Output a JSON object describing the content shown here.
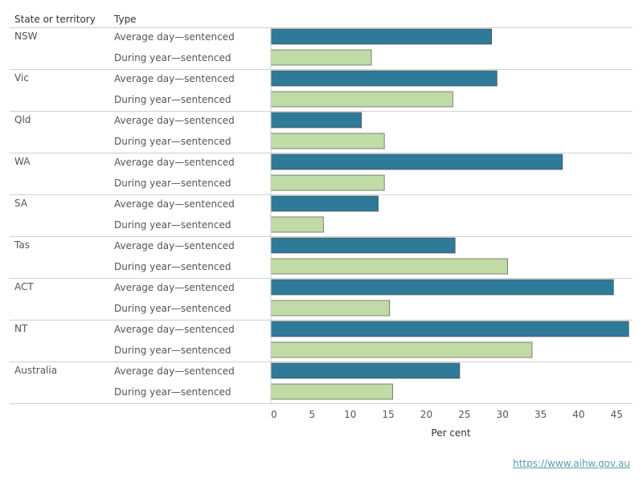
{
  "header": {
    "state_label": "State or territory",
    "type_label": "Type"
  },
  "source_link": "https://www.aihw.gov.au",
  "colors": {
    "average_day": "#2e7a98",
    "during_year": "#c0dba6"
  },
  "chart_data": {
    "type": "bar",
    "orientation": "horizontal",
    "xlabel": "Per cent",
    "xlim": [
      0,
      47.5
    ],
    "xticks": [
      0,
      5,
      10,
      15,
      20,
      25,
      30,
      35,
      40,
      45
    ],
    "categories": [
      "NSW",
      "Vic",
      "Qld",
      "WA",
      "SA",
      "Tas",
      "ACT",
      "NT",
      "Australia"
    ],
    "series": [
      {
        "name": "Average day—sentenced",
        "values": [
          29,
          29.7,
          11.9,
          38.3,
          14.1,
          24.2,
          45,
          47,
          24.8
        ]
      },
      {
        "name": "During year—sentenced",
        "values": [
          13.2,
          23.9,
          14.9,
          14.9,
          6.9,
          31.1,
          15.6,
          34.3,
          16
        ]
      }
    ],
    "grid": false,
    "legend": "none"
  }
}
